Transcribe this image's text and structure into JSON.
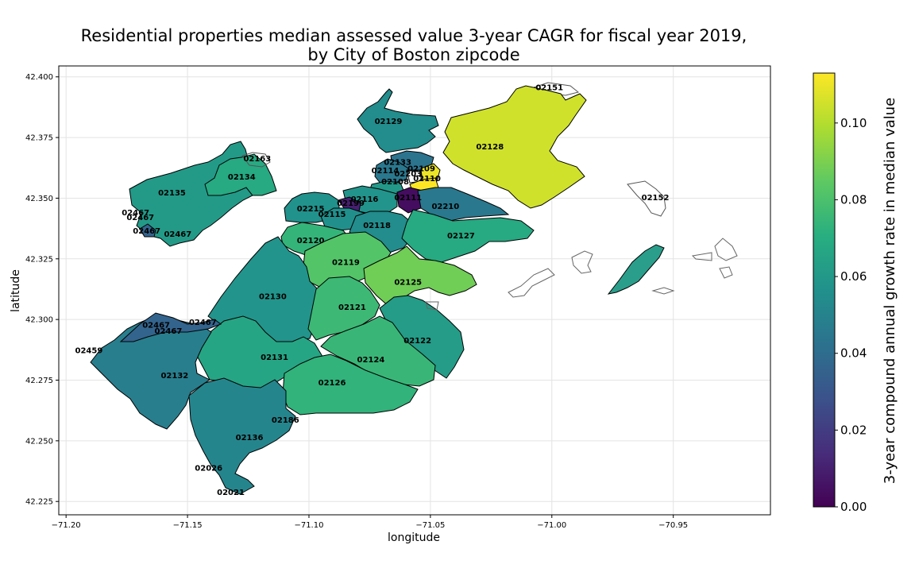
{
  "title_line1": "Residential properties median assessed value 3-year CAGR for fiscal year 2019,",
  "title_line2": "by City of Boston zipcode",
  "xlabel": "longitude",
  "ylabel": "latitude",
  "colorbar": {
    "label": "3-year compound annual growth rate in median value",
    "colormap": "viridis",
    "range": [
      0.0,
      0.113
    ],
    "ticks": [
      "0.00",
      "0.02",
      "0.04",
      "0.06",
      "0.08",
      "0.10"
    ]
  },
  "chart_data": {
    "type": "choropleth",
    "x_ticks": [
      "−71.20",
      "−71.15",
      "−71.10",
      "−71.05",
      "−71.00",
      "−70.95"
    ],
    "y_ticks": [
      "42.225",
      "42.250",
      "42.275",
      "42.300",
      "42.325",
      "42.350",
      "42.375",
      "42.400"
    ],
    "xlim": [
      -71.203,
      -70.91
    ],
    "ylim": [
      42.2195,
      42.4045
    ],
    "grid": true,
    "regions": [
      {
        "zip": "02151",
        "value": null
      },
      {
        "zip": "02129",
        "value": 0.054
      },
      {
        "zip": "02128",
        "value": 0.105
      },
      {
        "zip": "02163",
        "value": null
      },
      {
        "zip": "02133",
        "value": 0.043
      },
      {
        "zip": "02134",
        "value": 0.068
      },
      {
        "zip": "02114",
        "value": 0.045
      },
      {
        "zip": "02203",
        "value": null
      },
      {
        "zip": "02109",
        "value": 0.11
      },
      {
        "zip": "02108",
        "value": 0.06
      },
      {
        "zip": "02110",
        "value": 0.113
      },
      {
        "zip": "02135",
        "value": 0.061
      },
      {
        "zip": "02116",
        "value": 0.058
      },
      {
        "zip": "02111",
        "value": 0.004
      },
      {
        "zip": "02152",
        "value": null
      },
      {
        "zip": "02467",
        "value": 0.036
      },
      {
        "zip": "02215",
        "value": 0.057
      },
      {
        "zip": "02199",
        "value": 0.01
      },
      {
        "zip": "02210",
        "value": 0.045
      },
      {
        "zip": "02115",
        "value": 0.056
      },
      {
        "zip": "02118",
        "value": 0.054
      },
      {
        "zip": "02120",
        "value": 0.074
      },
      {
        "zip": "02127",
        "value": 0.068
      },
      {
        "zip": "02119",
        "value": 0.082
      },
      {
        "zip": "02125",
        "value": 0.088
      },
      {
        "zip": "02130",
        "value": 0.058
      },
      {
        "zip": "02121",
        "value": 0.076
      },
      {
        "zip": "02122",
        "value": 0.062
      },
      {
        "zip": "02459",
        "value": null
      },
      {
        "zip": "02124",
        "value": 0.075
      },
      {
        "zip": "02131",
        "value": 0.066
      },
      {
        "zip": "02132",
        "value": 0.048
      },
      {
        "zip": "02126",
        "value": 0.073
      },
      {
        "zip": "02186",
        "value": null
      },
      {
        "zip": "02136",
        "value": 0.051
      },
      {
        "zip": "02026",
        "value": null
      },
      {
        "zip": "02021",
        "value": null
      }
    ],
    "labels": [
      {
        "text": "02151",
        "lon": -71.001,
        "lat": 42.3957
      },
      {
        "text": "02129",
        "lon": -71.0673,
        "lat": 42.3818
      },
      {
        "text": "02128",
        "lon": -71.0255,
        "lat": 42.3713
      },
      {
        "text": "02163",
        "lon": -71.1213,
        "lat": 42.3664
      },
      {
        "text": "02133",
        "lon": -71.0635,
        "lat": 42.3648
      },
      {
        "text": "02134",
        "lon": -71.1277,
        "lat": 42.3589
      },
      {
        "text": "02114",
        "lon": -71.0686,
        "lat": 42.3615
      },
      {
        "text": "02203",
        "lon": -71.0592,
        "lat": 42.3602
      },
      {
        "text": "02109",
        "lon": -71.0537,
        "lat": 42.3622
      },
      {
        "text": "02108",
        "lon": -71.0645,
        "lat": 42.3569
      },
      {
        "text": "02110",
        "lon": -71.0514,
        "lat": 42.3582
      },
      {
        "text": "02135",
        "lon": -71.1564,
        "lat": 42.3523
      },
      {
        "text": "02116",
        "lon": -71.0771,
        "lat": 42.3497
      },
      {
        "text": "02111",
        "lon": -71.0592,
        "lat": 42.3503
      },
      {
        "text": "02152",
        "lon": -70.9574,
        "lat": 42.3503
      },
      {
        "text": "02467",
        "lon": -71.1714,
        "lat": 42.3441
      },
      {
        "text": "02467",
        "lon": -71.1694,
        "lat": 42.3421
      },
      {
        "text": "02467",
        "lon": -71.1668,
        "lat": 42.3365
      },
      {
        "text": "02467",
        "lon": -71.154,
        "lat": 42.3352
      },
      {
        "text": "02215",
        "lon": -71.0993,
        "lat": 42.3457
      },
      {
        "text": "02199",
        "lon": -71.0828,
        "lat": 42.348
      },
      {
        "text": "02210",
        "lon": -71.0438,
        "lat": 42.3467
      },
      {
        "text": "02115",
        "lon": -71.0905,
        "lat": 42.3434
      },
      {
        "text": "02118",
        "lon": -71.072,
        "lat": 42.3388
      },
      {
        "text": "02120",
        "lon": -71.0993,
        "lat": 42.3326
      },
      {
        "text": "02127",
        "lon": -71.0374,
        "lat": 42.3346
      },
      {
        "text": "02119",
        "lon": -71.0848,
        "lat": 42.3237
      },
      {
        "text": "02125",
        "lon": -71.0592,
        "lat": 42.3155
      },
      {
        "text": "02130",
        "lon": -71.1149,
        "lat": 42.3096
      },
      {
        "text": "02121",
        "lon": -71.0822,
        "lat": 42.3051
      },
      {
        "text": "02122",
        "lon": -71.0553,
        "lat": 42.2914
      },
      {
        "text": "02459",
        "lon": -71.1906,
        "lat": 42.2872
      },
      {
        "text": "02124",
        "lon": -71.0745,
        "lat": 42.2835
      },
      {
        "text": "02131",
        "lon": -71.1142,
        "lat": 42.2845
      },
      {
        "text": "02132",
        "lon": -71.1553,
        "lat": 42.277
      },
      {
        "text": "02126",
        "lon": -71.0905,
        "lat": 42.274
      },
      {
        "text": "02186",
        "lon": -71.1097,
        "lat": 42.2586
      },
      {
        "text": "02136",
        "lon": -71.1245,
        "lat": 42.2514
      },
      {
        "text": "02026",
        "lon": -71.1413,
        "lat": 42.2389
      },
      {
        "text": "02021",
        "lon": -71.1322,
        "lat": 42.2288
      },
      {
        "text": "02467",
        "lon": -71.1629,
        "lat": 42.2978
      },
      {
        "text": "02467",
        "lon": -71.1579,
        "lat": 42.2953
      },
      {
        "text": "02467",
        "lon": -71.1437,
        "lat": 42.2989
      }
    ]
  }
}
